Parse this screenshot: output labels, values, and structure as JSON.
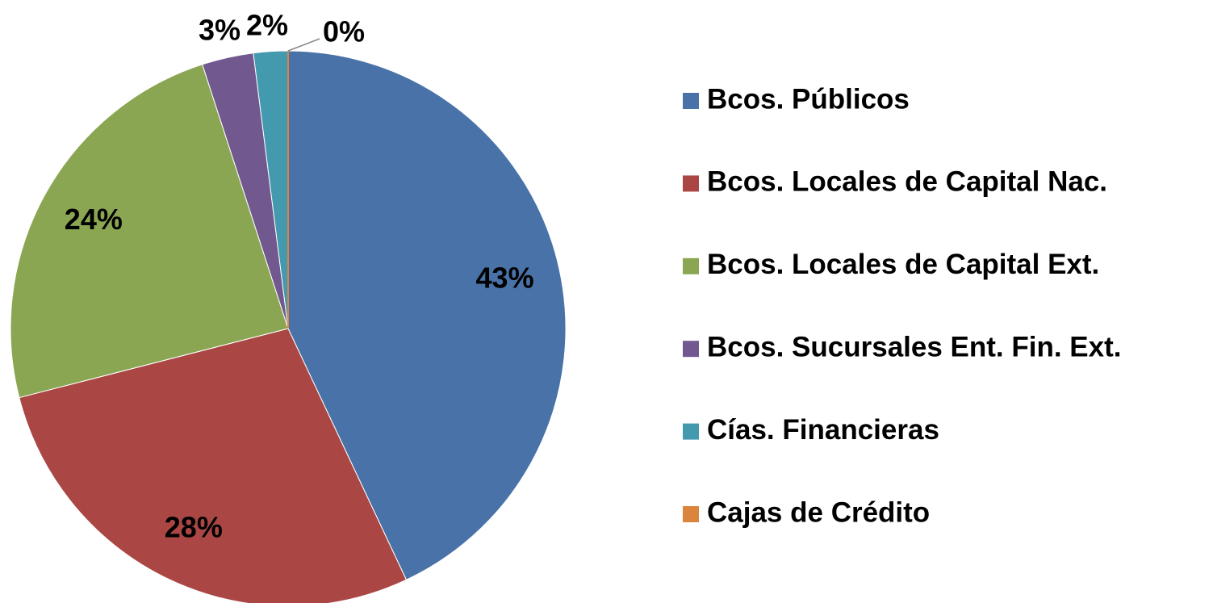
{
  "chart_data": {
    "type": "pie",
    "categories": [
      "Bcos. Públicos",
      "Bcos. Locales de Capital Nac.",
      "Bcos. Locales de Capital Ext.",
      "Bcos. Sucursales Ent. Fin. Ext.",
      "Cías. Financieras",
      "Cajas de Crédito"
    ],
    "values": [
      43,
      28,
      24,
      3,
      2,
      0
    ],
    "value_labels": [
      "43%",
      "28%",
      "24%",
      "3%",
      "2%",
      "0%"
    ],
    "colors": [
      "#4872a8",
      "#aa4744",
      "#8aa652",
      "#71598f",
      "#4399ae",
      "#db843d"
    ],
    "legend": "right"
  }
}
